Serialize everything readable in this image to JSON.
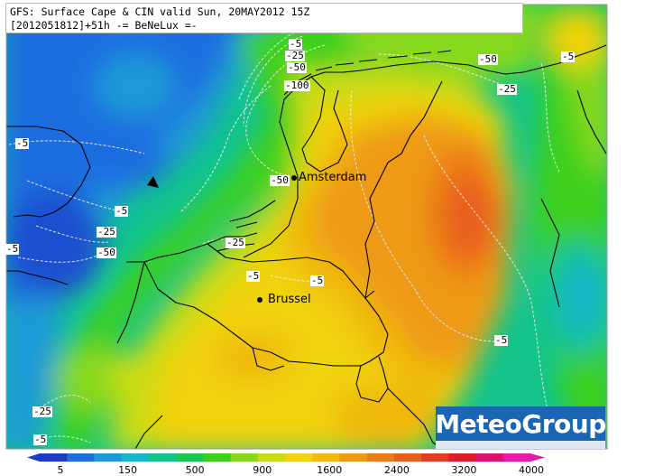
{
  "header": {
    "line1": "GFS: Surface Cape & CIN valid Sun, 20MAY2012 15Z",
    "line2": "[2012051812]+51h -= BeNeLux =-"
  },
  "cities": [
    {
      "name": "Amsterdam"
    },
    {
      "name": "Brussel"
    }
  ],
  "cin_labels": [
    "-5",
    "-25",
    "-50",
    "-50",
    "-5",
    "-25",
    "-100",
    "-5",
    "-5",
    "-25",
    "-50",
    "-5",
    "-50",
    "-25",
    "-5",
    "-5",
    "-5",
    "-25",
    "-5",
    "-5",
    "-25"
  ],
  "brand": "MeteoGroup",
  "colorbar": {
    "ticks": [
      "5",
      "150",
      "500",
      "900",
      "1600",
      "2400",
      "3200",
      "4000"
    ],
    "colors": [
      "#1a3cc8",
      "#1e6ee0",
      "#1c9ad6",
      "#14b8c8",
      "#12c48c",
      "#18c850",
      "#3cd01c",
      "#86d81a",
      "#c8dc14",
      "#f0d20e",
      "#f0b810",
      "#ee9a14",
      "#ec7c18",
      "#e85e1c",
      "#e43c20",
      "#e01c2c",
      "#e0106e",
      "#e81aa8"
    ]
  }
}
